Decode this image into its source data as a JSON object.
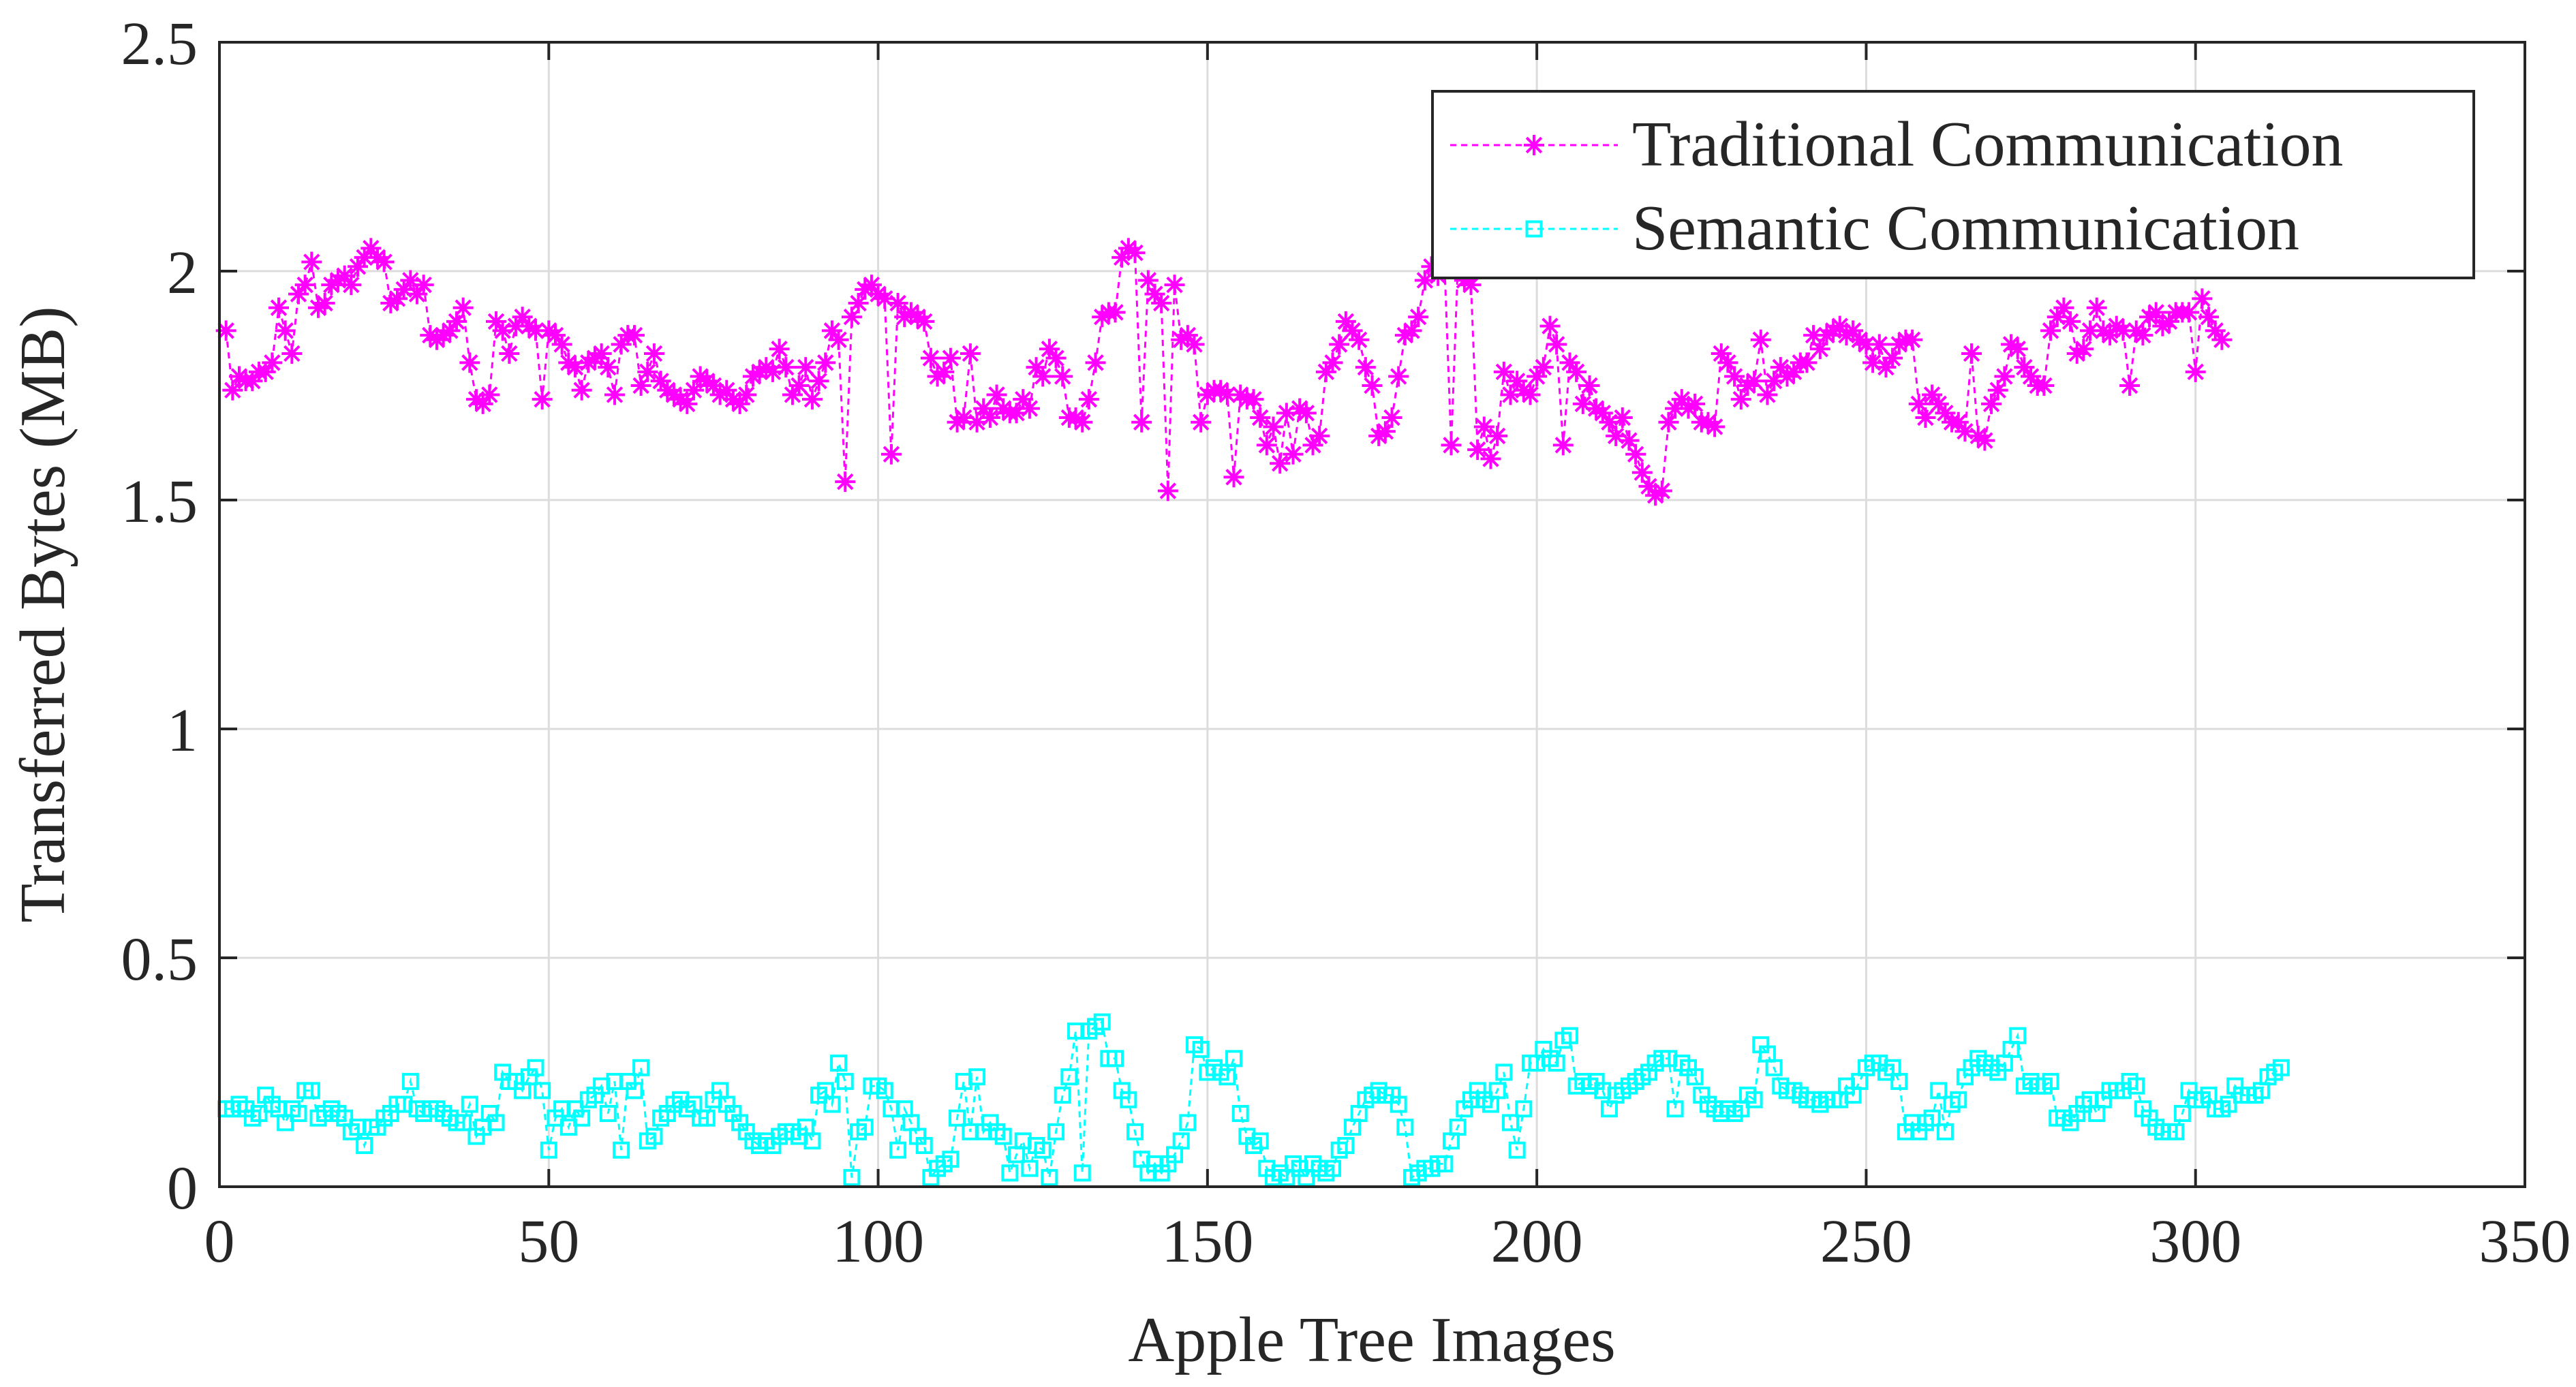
{
  "chart_data": {
    "type": "line",
    "title": "",
    "xlabel": "Apple Tree Images",
    "ylabel": "Transferred Bytes (MB)",
    "xlim": [
      0,
      350
    ],
    "ylim": [
      0,
      2.5
    ],
    "xticks": [
      0,
      50,
      100,
      150,
      200,
      250,
      300,
      350
    ],
    "yticks": [
      0,
      0.5,
      1,
      1.5,
      2,
      2.5
    ],
    "xtick_labels": [
      "0",
      "50",
      "100",
      "150",
      "200",
      "250",
      "300",
      "350"
    ],
    "ytick_labels": [
      "0",
      "0.5",
      "1",
      "1.5",
      "2",
      "2.5"
    ],
    "grid": true,
    "legend_position": "top-right",
    "series": [
      {
        "name": "Traditional Communication",
        "color": "#ff00ff",
        "marker": "asterisk",
        "linestyle": "dashed",
        "values": [
          1.87,
          1.74,
          1.77,
          1.76,
          1.76,
          1.78,
          1.78,
          1.8,
          1.92,
          1.87,
          1.82,
          1.95,
          1.97,
          2.02,
          1.92,
          1.93,
          1.97,
          1.98,
          1.99,
          1.97,
          2.01,
          2.03,
          2.05,
          2.03,
          2.02,
          1.93,
          1.94,
          1.96,
          1.98,
          1.95,
          1.97,
          1.86,
          1.85,
          1.86,
          1.87,
          1.89,
          1.92,
          1.8,
          1.72,
          1.71,
          1.73,
          1.89,
          1.87,
          1.82,
          1.88,
          1.9,
          1.88,
          1.87,
          1.72,
          1.87,
          1.86,
          1.84,
          1.8,
          1.79,
          1.74,
          1.8,
          1.81,
          1.82,
          1.79,
          1.73,
          1.84,
          1.86,
          1.86,
          1.75,
          1.78,
          1.82,
          1.76,
          1.74,
          1.73,
          1.72,
          1.71,
          1.74,
          1.77,
          1.76,
          1.75,
          1.73,
          1.74,
          1.72,
          1.71,
          1.73,
          1.77,
          1.78,
          1.79,
          1.78,
          1.83,
          1.79,
          1.73,
          1.75,
          1.79,
          1.72,
          1.76,
          1.8,
          1.87,
          1.85,
          1.54,
          1.9,
          1.93,
          1.96,
          1.97,
          1.95,
          1.94,
          1.6,
          1.93,
          1.9,
          1.91,
          1.9,
          1.89,
          1.81,
          1.77,
          1.78,
          1.81,
          1.67,
          1.68,
          1.82,
          1.67,
          1.7,
          1.68,
          1.73,
          1.7,
          1.69,
          1.69,
          1.72,
          1.7,
          1.79,
          1.77,
          1.83,
          1.81,
          1.77,
          1.68,
          1.68,
          1.67,
          1.72,
          1.8,
          1.9,
          1.91,
          1.91,
          2.03,
          2.05,
          2.04,
          1.67,
          1.98,
          1.95,
          1.93,
          1.52,
          1.97,
          1.85,
          1.86,
          1.84,
          1.67,
          1.73,
          1.74,
          1.74,
          1.73,
          1.55,
          1.73,
          1.72,
          1.72,
          1.68,
          1.62,
          1.66,
          1.58,
          1.69,
          1.6,
          1.7,
          1.69,
          1.62,
          1.64,
          1.78,
          1.8,
          1.84,
          1.89,
          1.87,
          1.85,
          1.79,
          1.75,
          1.64,
          1.65,
          1.68,
          1.77,
          1.86,
          1.87,
          1.9,
          1.98,
          2.01,
          1.99,
          2.01,
          1.62,
          2.01,
          1.98,
          1.97,
          1.61,
          1.66,
          1.59,
          1.64,
          1.78,
          1.73,
          1.76,
          1.74,
          1.73,
          1.77,
          1.79,
          1.88,
          1.84,
          1.62,
          1.8,
          1.78,
          1.71,
          1.75,
          1.7,
          1.69,
          1.67,
          1.64,
          1.68,
          1.63,
          1.6,
          1.56,
          1.53,
          1.51,
          1.52,
          1.67,
          1.7,
          1.72,
          1.7,
          1.71,
          1.67,
          1.67,
          1.66,
          1.82,
          1.8,
          1.77,
          1.72,
          1.75,
          1.76,
          1.85,
          1.73,
          1.76,
          1.79,
          1.77,
          1.78,
          1.8,
          1.8,
          1.86,
          1.83,
          1.86,
          1.87,
          1.88,
          1.86,
          1.87,
          1.85,
          1.84,
          1.8,
          1.84,
          1.79,
          1.81,
          1.84,
          1.85,
          1.85,
          1.71,
          1.68,
          1.73,
          1.71,
          1.69,
          1.67,
          1.67,
          1.65,
          1.82,
          1.64,
          1.63,
          1.71,
          1.74,
          1.77,
          1.84,
          1.83,
          1.79,
          1.77,
          1.75,
          1.75,
          1.87,
          1.9,
          1.92,
          1.89,
          1.82,
          1.83,
          1.87,
          1.92,
          1.87,
          1.86,
          1.88,
          1.87,
          1.75,
          1.87,
          1.86,
          1.9,
          1.91,
          1.88,
          1.89,
          1.91,
          1.91,
          1.91,
          1.78,
          1.94,
          1.9,
          1.87,
          1.85
        ]
      },
      {
        "name": "Semantic Communication",
        "color": "#00ffff",
        "marker": "square",
        "linestyle": "dashed",
        "values": [
          0.17,
          0.17,
          0.18,
          0.17,
          0.15,
          0.16,
          0.2,
          0.18,
          0.17,
          0.14,
          0.17,
          0.16,
          0.21,
          0.21,
          0.15,
          0.16,
          0.17,
          0.16,
          0.15,
          0.12,
          0.13,
          0.09,
          0.13,
          0.13,
          0.15,
          0.16,
          0.18,
          0.18,
          0.23,
          0.17,
          0.16,
          0.17,
          0.17,
          0.16,
          0.15,
          0.14,
          0.14,
          0.18,
          0.11,
          0.13,
          0.16,
          0.14,
          0.25,
          0.23,
          0.23,
          0.21,
          0.24,
          0.26,
          0.21,
          0.08,
          0.15,
          0.17,
          0.13,
          0.17,
          0.15,
          0.19,
          0.2,
          0.22,
          0.16,
          0.23,
          0.08,
          0.23,
          0.21,
          0.26,
          0.1,
          0.11,
          0.15,
          0.16,
          0.18,
          0.19,
          0.17,
          0.18,
          0.15,
          0.15,
          0.19,
          0.21,
          0.18,
          0.16,
          0.14,
          0.12,
          0.1,
          0.09,
          0.1,
          0.09,
          0.11,
          0.12,
          0.12,
          0.11,
          0.13,
          0.1,
          0.2,
          0.21,
          0.18,
          0.27,
          0.23,
          0.02,
          0.12,
          0.13,
          0.22,
          0.22,
          0.21,
          0.17,
          0.08,
          0.17,
          0.14,
          0.11,
          0.09,
          0.02,
          0.04,
          0.05,
          0.06,
          0.15,
          0.23,
          0.12,
          0.24,
          0.12,
          0.14,
          0.12,
          0.11,
          0.03,
          0.07,
          0.1,
          0.04,
          0.09,
          0.08,
          0.02,
          0.12,
          0.2,
          0.24,
          0.34,
          0.03,
          0.34,
          0.35,
          0.36,
          0.28,
          0.28,
          0.21,
          0.19,
          0.12,
          0.06,
          0.03,
          0.05,
          0.03,
          0.05,
          0.07,
          0.1,
          0.14,
          0.31,
          0.3,
          0.25,
          0.26,
          0.25,
          0.24,
          0.28,
          0.16,
          0.11,
          0.09,
          0.1,
          0.04,
          0.02,
          0.03,
          0.02,
          0.05,
          0.04,
          0.02,
          0.05,
          0.04,
          0.03,
          0.04,
          0.08,
          0.09,
          0.13,
          0.16,
          0.19,
          0.2,
          0.21,
          0.2,
          0.2,
          0.18,
          0.13,
          0.02,
          0.03,
          0.04,
          0.04,
          0.05,
          0.05,
          0.1,
          0.13,
          0.17,
          0.19,
          0.21,
          0.19,
          0.18,
          0.21,
          0.25,
          0.14,
          0.08,
          0.17,
          0.27,
          0.27,
          0.3,
          0.28,
          0.27,
          0.32,
          0.33,
          0.22,
          0.23,
          0.22,
          0.23,
          0.21,
          0.17,
          0.2,
          0.21,
          0.22,
          0.23,
          0.24,
          0.25,
          0.27,
          0.28,
          0.28,
          0.17,
          0.27,
          0.26,
          0.24,
          0.2,
          0.18,
          0.17,
          0.16,
          0.17,
          0.16,
          0.17,
          0.2,
          0.19,
          0.31,
          0.29,
          0.26,
          0.22,
          0.21,
          0.21,
          0.2,
          0.19,
          0.19,
          0.18,
          0.19,
          0.19,
          0.19,
          0.22,
          0.2,
          0.23,
          0.26,
          0.27,
          0.27,
          0.25,
          0.26,
          0.23,
          0.12,
          0.14,
          0.12,
          0.14,
          0.15,
          0.21,
          0.12,
          0.18,
          0.19,
          0.24,
          0.26,
          0.28,
          0.27,
          0.26,
          0.25,
          0.27,
          0.3,
          0.33,
          0.22,
          0.23,
          0.22,
          0.22,
          0.23,
          0.15,
          0.15,
          0.14,
          0.16,
          0.18,
          0.19,
          0.16,
          0.19,
          0.21,
          0.21,
          0.21,
          0.23,
          0.22,
          0.17,
          0.15,
          0.13,
          0.12,
          0.12,
          0.12,
          0.16,
          0.21,
          0.19,
          0.19,
          0.2,
          0.17,
          0.17,
          0.18,
          0.22,
          0.2,
          0.2,
          0.2,
          0.21,
          0.24,
          0.25,
          0.26
        ]
      }
    ]
  }
}
